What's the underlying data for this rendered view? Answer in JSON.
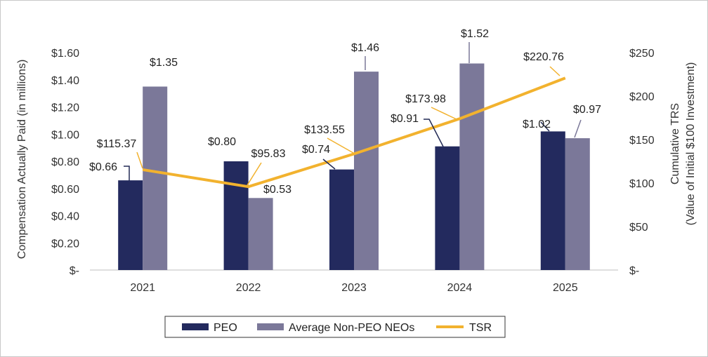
{
  "chart_data": {
    "type": "bar",
    "categories": [
      "2021",
      "2022",
      "2023",
      "2024",
      "2025"
    ],
    "series": [
      {
        "name": "PEO",
        "type": "bar",
        "axis": "left",
        "color": "#232a5e",
        "values": [
          0.66,
          0.8,
          0.74,
          0.91,
          1.02
        ],
        "labels": [
          "$0.66",
          "$0.80",
          "$0.74",
          "$0.91",
          "$1.02"
        ]
      },
      {
        "name": "Average Non-PEO NEOs",
        "type": "bar",
        "axis": "left",
        "color": "#7b7899",
        "values": [
          1.35,
          0.53,
          1.46,
          1.52,
          0.97
        ],
        "labels": [
          "$1.35",
          "$0.53",
          "$1.46",
          "$1.52",
          "$0.97"
        ]
      },
      {
        "name": "TSR",
        "type": "line",
        "axis": "right",
        "color": "#f2b22e",
        "values": [
          115.37,
          95.83,
          133.55,
          173.98,
          220.76
        ],
        "labels": [
          "$115.37",
          "$95.83",
          "$133.55",
          "$173.98",
          "$220.76"
        ]
      }
    ],
    "y_left": {
      "label": "Compensation Actually Paid (in millions)",
      "range": [
        0,
        1.6
      ],
      "ticks": [
        0,
        0.2,
        0.4,
        0.6,
        0.8,
        1.0,
        1.2,
        1.4,
        1.6
      ],
      "tick_labels": [
        "$-",
        "$0.20",
        "$0.40",
        "$0.60",
        "$0.80",
        "$1.00",
        "$1.20",
        "$1.40",
        "$1.60"
      ]
    },
    "y_right": {
      "label_lines": [
        "Cumulative TRS",
        "(Value of Initial $100 Investment)"
      ],
      "range": [
        0,
        250
      ],
      "ticks": [
        0,
        50,
        100,
        150,
        200,
        250
      ],
      "tick_labels": [
        "$-",
        "$50",
        "$100",
        "$150",
        "$200",
        "$250"
      ]
    },
    "grid": false,
    "legend": {
      "position": "bottom",
      "entries": [
        "PEO",
        "Average Non-PEO NEOs",
        "TSR"
      ]
    }
  }
}
